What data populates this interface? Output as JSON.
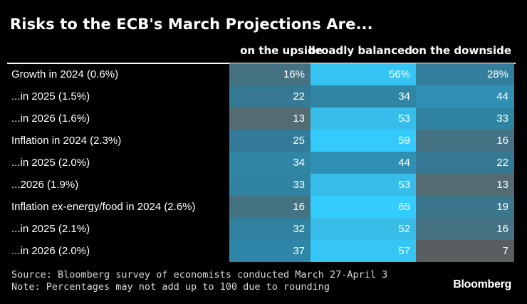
{
  "chart_data": {
    "type": "table",
    "title": "Risks to the ECB's March Projections Are...",
    "columns": [
      "on the upside",
      "broadly balanced",
      "on the downside"
    ],
    "rows": [
      {
        "label": "Growth in 2024 (0.6%)",
        "values": [
          "16%",
          "56%",
          "28%"
        ],
        "numbers": [
          16,
          56,
          28
        ]
      },
      {
        "label": "...in 2025 (1.5%)",
        "values": [
          "22",
          "34",
          "44"
        ],
        "numbers": [
          22,
          34,
          44
        ]
      },
      {
        "label": "...in 2026 (1.6%)",
        "values": [
          "13",
          "53",
          "33"
        ],
        "numbers": [
          13,
          53,
          33
        ]
      },
      {
        "label": "Inflation in 2024 (2.3%)",
        "values": [
          "25",
          "59",
          "16"
        ],
        "numbers": [
          25,
          59,
          16
        ]
      },
      {
        "label": "...in 2025 (2.0%)",
        "values": [
          "34",
          "44",
          "22"
        ],
        "numbers": [
          34,
          44,
          22
        ]
      },
      {
        "label": "...2026 (1.9%)",
        "values": [
          "33",
          "53",
          "13"
        ],
        "numbers": [
          33,
          53,
          13
        ]
      },
      {
        "label": "Inflation ex-energy/food in 2024 (2.6%)",
        "values": [
          "16",
          "65",
          "19"
        ],
        "numbers": [
          16,
          65,
          19
        ]
      },
      {
        "label": "...in 2025 (2.1%)",
        "values": [
          "32",
          "52",
          "16"
        ],
        "numbers": [
          32,
          52,
          16
        ]
      },
      {
        "label": "...in 2026 (2.0%)",
        "values": [
          "37",
          "57",
          "7"
        ],
        "numbers": [
          37,
          57,
          7
        ]
      }
    ],
    "color_scale": {
      "low": "#5a5a5a",
      "high": "#33ccff"
    }
  },
  "footer": {
    "source": "Source: Bloomberg survey of economists conducted March 27-April 3",
    "note": "Note: Percentages may not add up to 100 due to rounding"
  },
  "brand": "Bloomberg"
}
